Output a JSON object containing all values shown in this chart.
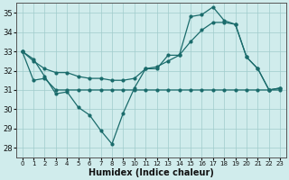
{
  "xlabel": "Humidex (Indice chaleur)",
  "background_color": "#d0ecec",
  "grid_color": "#a0cccc",
  "line_color": "#1a6b6b",
  "xlim": [
    -0.5,
    23.5
  ],
  "ylim": [
    27.5,
    35.5
  ],
  "yticks": [
    28,
    29,
    30,
    31,
    32,
    33,
    34,
    35
  ],
  "xticks": [
    0,
    1,
    2,
    3,
    4,
    5,
    6,
    7,
    8,
    9,
    10,
    11,
    12,
    13,
    14,
    15,
    16,
    17,
    18,
    19,
    20,
    21,
    22,
    23
  ],
  "line1_y": [
    33.0,
    32.6,
    31.7,
    30.8,
    30.9,
    30.1,
    29.7,
    28.9,
    28.2,
    29.8,
    31.1,
    32.1,
    32.1,
    32.8,
    32.8,
    34.8,
    34.9,
    35.3,
    34.6,
    34.4,
    32.7,
    32.1,
    31.0,
    31.1
  ],
  "line2_y": [
    33.0,
    32.5,
    32.1,
    31.9,
    31.9,
    31.7,
    31.6,
    31.6,
    31.5,
    31.5,
    31.6,
    32.1,
    32.2,
    32.5,
    32.8,
    33.5,
    34.1,
    34.5,
    34.5,
    34.4,
    32.7,
    32.1,
    31.0,
    31.1
  ],
  "line3_y": [
    33.0,
    31.5,
    31.6,
    31.0,
    31.0,
    31.0,
    31.0,
    31.0,
    31.0,
    31.0,
    31.0,
    31.0,
    31.0,
    31.0,
    31.0,
    31.0,
    31.0,
    31.0,
    31.0,
    31.0,
    31.0,
    31.0,
    31.0,
    31.0
  ]
}
